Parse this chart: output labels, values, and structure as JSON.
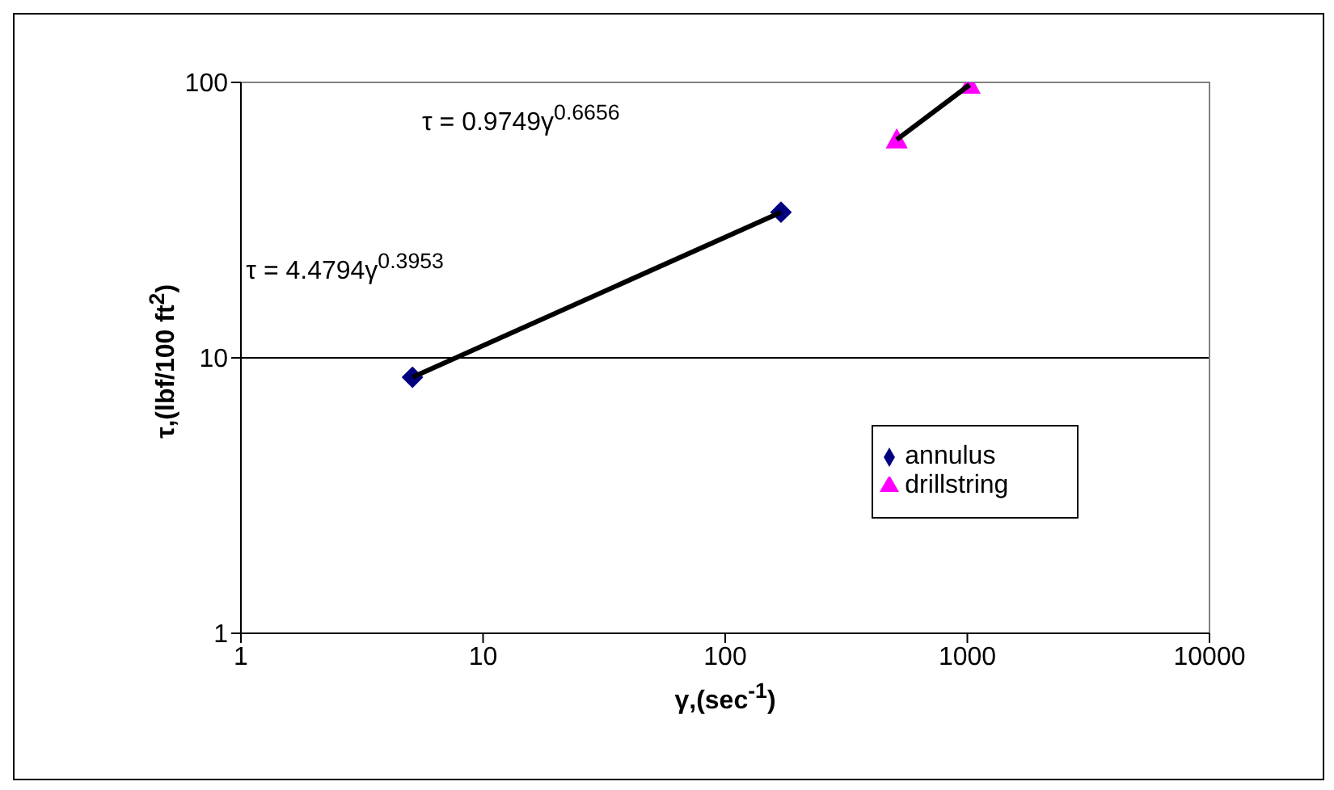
{
  "chart_data": {
    "type": "scatter",
    "xlabel": "γ,(sec$^{-1}$)",
    "ylabel": "τ,(lbf/100 ft$^{2}$)",
    "log": "xy",
    "xlim": [
      1,
      10000
    ],
    "xticks": [
      1,
      10,
      100,
      1000,
      10000
    ],
    "ylim": [
      1,
      100
    ],
    "yticks": [
      1,
      10,
      100
    ],
    "grid": "y",
    "legend": "bottom right",
    "series": [
      {
        "name": "annulus",
        "color": "#000080",
        "marker": "diamond",
        "x": [
          5.11,
          170
        ],
        "values": [
          8.5,
          33.8
        ]
      },
      {
        "name": "drillstring",
        "color": "#ff00ff",
        "marker": "triangle",
        "x": [
          511,
          1022
        ],
        "values": [
          62,
          98
        ]
      },
      {
        "type": "line",
        "color": "#000000",
        "marker": "none",
        "x": [
          5.11,
          170
        ],
        "values": [
          8.5,
          33.8
        ]
      },
      {
        "type": "line",
        "color": "#000000",
        "marker": "none",
        "x": [
          511,
          1022
        ],
        "values": [
          62,
          98
        ]
      }
    ],
    "annotations": [
      "τ = 4.4794γ$^{0.3953}$",
      "τ = 0.9749γ$^{0.6656}$"
    ]
  }
}
